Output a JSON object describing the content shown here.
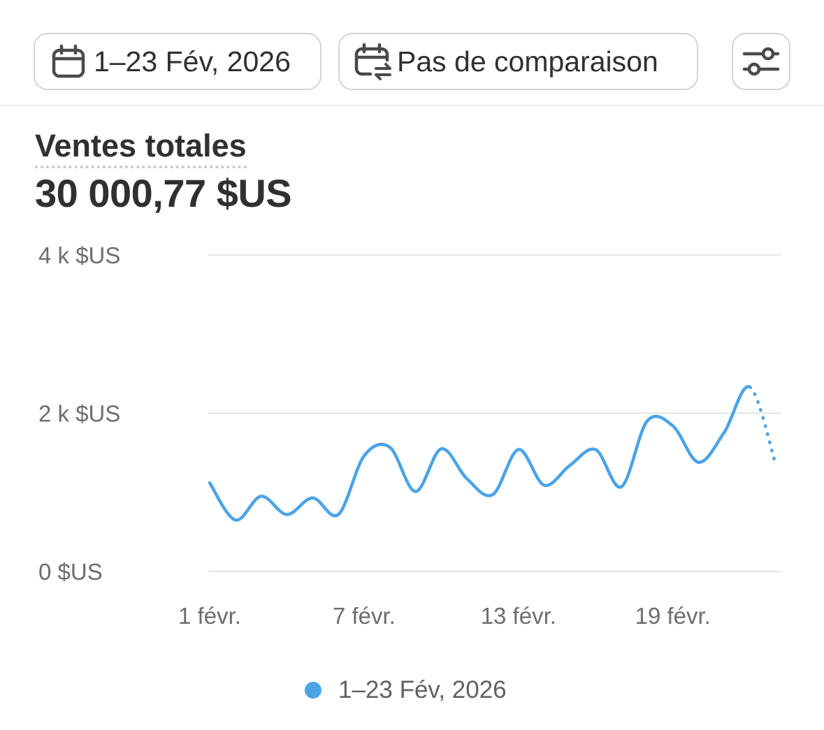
{
  "toolbar": {
    "date_range_label": "1–23 Fév, 2026",
    "comparison_label": "Pas de comparaison",
    "date_icon": "calendar-icon",
    "comparison_icon": "calendar-compare-icon",
    "filter_icon": "sliders-icon"
  },
  "metric": {
    "title": "Ventes totales",
    "value": "30 000,77 $US"
  },
  "legend": {
    "label": "1–23 Fév, 2026",
    "color": "#4ba3e8"
  },
  "chart_data": {
    "type": "line",
    "x": [
      "1 févr.",
      "2 févr.",
      "3 févr.",
      "4 févr.",
      "5 févr.",
      "6 févr.",
      "7 févr.",
      "8 févr.",
      "9 févr.",
      "10 févr.",
      "11 févr.",
      "12 févr.",
      "13 févr.",
      "14 févr.",
      "15 févr.",
      "16 févr.",
      "17 févr.",
      "18 févr.",
      "19 févr.",
      "20 févr.",
      "21 févr.",
      "22 févr.",
      "23 févr."
    ],
    "x_tick_labels": [
      "1 févr.",
      "7 févr.",
      "13 févr.",
      "19 févr."
    ],
    "series": [
      {
        "name": "1–23 Fév, 2026",
        "values": [
          1120,
          650,
          950,
          720,
          930,
          720,
          1460,
          1570,
          1010,
          1550,
          1170,
          970,
          1540,
          1090,
          1340,
          1540,
          1070,
          1900,
          1840,
          1380,
          1760,
          2330,
          1350
        ],
        "incomplete_from_index": 21,
        "color": "#4ba3e8"
      }
    ],
    "y_ticks": [
      "0 $US",
      "2 k $US",
      "4 k $US"
    ],
    "ylim": [
      0,
      4000
    ],
    "grid": true,
    "legend_position": "bottom"
  }
}
